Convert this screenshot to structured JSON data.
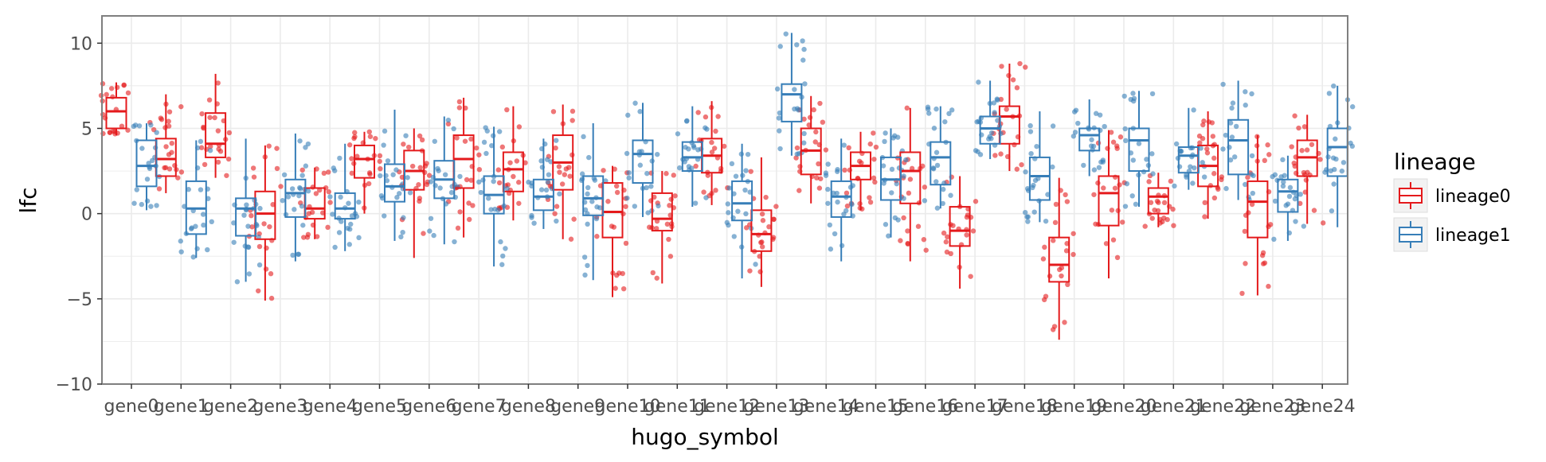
{
  "chart_data": {
    "type": "box",
    "xlabel": "hugo_symbol",
    "ylabel": "lfc",
    "ylim": [
      -10,
      11.6
    ],
    "yticks": [
      -10,
      -5,
      0,
      5,
      10
    ],
    "ytick_labels": [
      "−10",
      "−5",
      "0",
      "5",
      "10"
    ],
    "grid": true,
    "legend": {
      "title": "lineage",
      "position": "right"
    },
    "categories": [
      "gene0",
      "gene1",
      "gene2",
      "gene3",
      "gene4",
      "gene5",
      "gene6",
      "gene7",
      "gene8",
      "gene9",
      "gene10",
      "gene11",
      "gene12",
      "gene13",
      "gene14",
      "gene15",
      "gene16",
      "gene17",
      "gene18",
      "gene19",
      "gene20",
      "gene21",
      "gene22",
      "gene23",
      "gene24"
    ],
    "series": [
      {
        "name": "lineage0",
        "color": "#e41a1c",
        "boxes": [
          {
            "q1": 5.0,
            "median": 6.0,
            "q3": 6.8,
            "lo": 4.6,
            "hi": 7.7
          },
          {
            "q1": 2.2,
            "median": 3.2,
            "q3": 4.4,
            "lo": 1.2,
            "hi": 7.0
          },
          {
            "q1": 3.3,
            "median": 4.1,
            "q3": 5.9,
            "lo": 2.1,
            "hi": 8.2
          },
          {
            "q1": -1.5,
            "median": 0.0,
            "q3": 1.3,
            "lo": -5.1,
            "hi": 4.0
          },
          {
            "q1": -0.3,
            "median": 0.3,
            "q3": 1.5,
            "lo": -1.5,
            "hi": 2.7
          },
          {
            "q1": 2.1,
            "median": 3.2,
            "q3": 4.0,
            "lo": 0.0,
            "hi": 4.8
          },
          {
            "q1": 1.4,
            "median": 2.5,
            "q3": 3.7,
            "lo": -2.6,
            "hi": 5.0
          },
          {
            "q1": 1.5,
            "median": 3.2,
            "q3": 4.6,
            "lo": -1.4,
            "hi": 6.8
          },
          {
            "q1": 1.3,
            "median": 2.6,
            "q3": 3.6,
            "lo": -0.4,
            "hi": 6.3
          },
          {
            "q1": 1.4,
            "median": 3.0,
            "q3": 4.6,
            "lo": -1.5,
            "hi": 6.4
          },
          {
            "q1": -1.4,
            "median": 0.1,
            "q3": 1.8,
            "lo": -4.9,
            "hi": 2.8
          },
          {
            "q1": -1.0,
            "median": -0.3,
            "q3": 1.2,
            "lo": -4.1,
            "hi": 2.5
          },
          {
            "q1": 2.4,
            "median": 3.4,
            "q3": 4.4,
            "lo": 0.5,
            "hi": 6.6
          },
          {
            "q1": -2.2,
            "median": -1.2,
            "q3": 0.2,
            "lo": -4.3,
            "hi": 3.3
          },
          {
            "q1": 2.3,
            "median": 3.7,
            "q3": 5.0,
            "lo": 0.6,
            "hi": 6.9
          },
          {
            "q1": 2.0,
            "median": 2.8,
            "q3": 3.6,
            "lo": 0.2,
            "hi": 4.8
          },
          {
            "q1": 0.6,
            "median": 2.5,
            "q3": 3.6,
            "lo": -2.8,
            "hi": 6.2
          },
          {
            "q1": -1.9,
            "median": -1.0,
            "q3": 0.4,
            "lo": -4.4,
            "hi": 2.2
          },
          {
            "q1": 4.1,
            "median": 5.7,
            "q3": 6.3,
            "lo": 2.5,
            "hi": 8.8
          },
          {
            "q1": -4.0,
            "median": -3.0,
            "q3": -1.4,
            "lo": -7.4,
            "hi": 2.1
          },
          {
            "q1": -0.7,
            "median": 1.2,
            "q3": 2.2,
            "lo": -3.8,
            "hi": 4.9
          },
          {
            "q1": 0.0,
            "median": 1.0,
            "q3": 1.5,
            "lo": -0.8,
            "hi": 2.4
          },
          {
            "q1": 1.6,
            "median": 2.8,
            "q3": 4.0,
            "lo": -0.3,
            "hi": 6.0
          },
          {
            "q1": -1.4,
            "median": 0.7,
            "q3": 1.9,
            "lo": -4.8,
            "hi": 4.6
          },
          {
            "q1": 2.2,
            "median": 3.3,
            "q3": 4.3,
            "lo": -0.6,
            "hi": 5.8
          }
        ]
      },
      {
        "name": "lineage1",
        "color": "#377eb8",
        "boxes": [
          {
            "q1": 1.6,
            "median": 2.8,
            "q3": 4.3,
            "lo": 0.2,
            "hi": 5.3
          },
          {
            "q1": -1.2,
            "median": 0.3,
            "q3": 1.9,
            "lo": -2.6,
            "hi": 4.3
          },
          {
            "q1": -1.3,
            "median": 0.3,
            "q3": 0.9,
            "lo": -4.0,
            "hi": 4.4
          },
          {
            "q1": -0.2,
            "median": 1.2,
            "q3": 2.0,
            "lo": -2.8,
            "hi": 4.7
          },
          {
            "q1": -0.3,
            "median": 0.3,
            "q3": 1.2,
            "lo": -2.2,
            "hi": 4.1
          },
          {
            "q1": 0.7,
            "median": 1.6,
            "q3": 2.9,
            "lo": -1.6,
            "hi": 6.1
          },
          {
            "q1": 0.9,
            "median": 2.0,
            "q3": 3.1,
            "lo": -1.8,
            "hi": 5.7
          },
          {
            "q1": 0.0,
            "median": 1.1,
            "q3": 2.2,
            "lo": -3.1,
            "hi": 5.1
          },
          {
            "q1": 0.2,
            "median": 1.0,
            "q3": 2.0,
            "lo": -0.9,
            "hi": 4.4
          },
          {
            "q1": -0.1,
            "median": 0.9,
            "q3": 2.2,
            "lo": -3.9,
            "hi": 5.3
          },
          {
            "q1": 1.8,
            "median": 3.5,
            "q3": 4.3,
            "lo": -0.2,
            "hi": 6.5
          },
          {
            "q1": 2.5,
            "median": 3.3,
            "q3": 4.2,
            "lo": 0.4,
            "hi": 6.3
          },
          {
            "q1": -0.4,
            "median": 0.6,
            "q3": 1.9,
            "lo": -3.8,
            "hi": 4.1
          },
          {
            "q1": 5.4,
            "median": 7.0,
            "q3": 7.6,
            "lo": 3.4,
            "hi": 10.6
          },
          {
            "q1": -0.2,
            "median": 1.0,
            "q3": 1.9,
            "lo": -2.8,
            "hi": 4.4
          },
          {
            "q1": 0.8,
            "median": 2.0,
            "q3": 3.3,
            "lo": -1.4,
            "hi": 5.0
          },
          {
            "q1": 1.7,
            "median": 3.3,
            "q3": 4.2,
            "lo": 0.3,
            "hi": 6.3
          },
          {
            "q1": 4.1,
            "median": 5.0,
            "q3": 5.7,
            "lo": 3.2,
            "hi": 7.8
          },
          {
            "q1": 0.8,
            "median": 2.2,
            "q3": 3.3,
            "lo": -0.5,
            "hi": 6.0
          },
          {
            "q1": 3.7,
            "median": 4.6,
            "q3": 5.0,
            "lo": 2.2,
            "hi": 6.7
          },
          {
            "q1": 2.5,
            "median": 4.3,
            "q3": 5.0,
            "lo": 0.4,
            "hi": 7.2
          },
          {
            "q1": 2.4,
            "median": 3.4,
            "q3": 3.9,
            "lo": 1.4,
            "hi": 6.2
          },
          {
            "q1": 2.3,
            "median": 4.3,
            "q3": 5.5,
            "lo": 0.8,
            "hi": 7.8
          },
          {
            "q1": 0.1,
            "median": 1.3,
            "q3": 2.0,
            "lo": -1.6,
            "hi": 3.4
          },
          {
            "q1": 2.2,
            "median": 3.9,
            "q3": 5.0,
            "lo": -0.8,
            "hi": 7.5
          }
        ]
      }
    ]
  }
}
